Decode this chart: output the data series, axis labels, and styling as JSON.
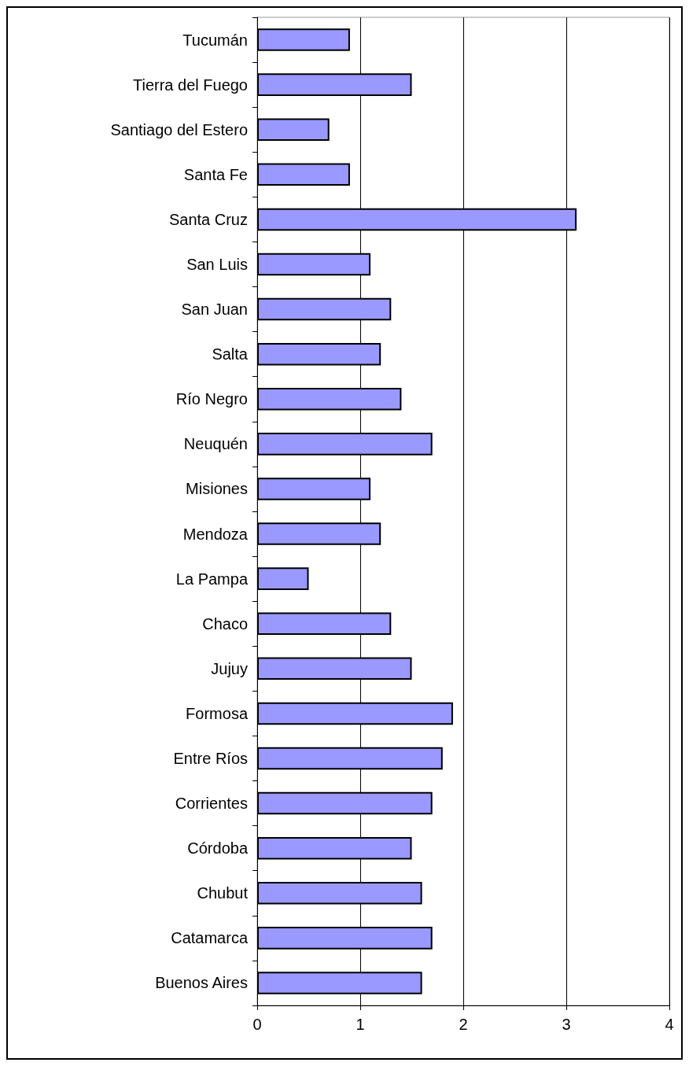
{
  "chart_data": {
    "type": "bar",
    "orientation": "horizontal",
    "categories": [
      "Tucumán",
      "Tierra del Fuego",
      "Santiago del Estero",
      "Santa Fe",
      "Santa Cruz",
      "San Luis",
      "San Juan",
      "Salta",
      "Río Negro",
      "Neuquén",
      "Misiones",
      "Mendoza",
      "La Pampa",
      "Chaco",
      "Jujuy",
      "Formosa",
      "Entre Ríos",
      "Corrientes",
      "Córdoba",
      "Chubut",
      "Catamarca",
      "Buenos Aires"
    ],
    "values": [
      0.9,
      1.5,
      0.7,
      0.9,
      3.1,
      1.1,
      1.3,
      1.2,
      1.4,
      1.7,
      1.1,
      1.2,
      0.5,
      1.3,
      1.5,
      1.9,
      1.8,
      1.7,
      1.5,
      1.6,
      1.7,
      1.6
    ],
    "color": "#9999ff",
    "xlim": [
      0,
      4
    ],
    "xticks": [
      0,
      1,
      2,
      3,
      4
    ],
    "grid": "x"
  }
}
